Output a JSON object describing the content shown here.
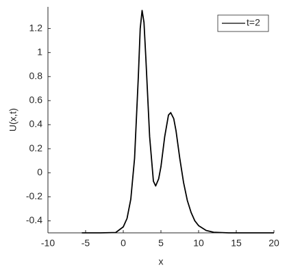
{
  "chart_data": {
    "type": "line",
    "xlabel": "x",
    "ylabel": "U(x,t)",
    "x": [
      -5.5,
      -3,
      -1,
      0,
      0.5,
      1,
      1.5,
      2,
      2.25,
      2.5,
      2.75,
      3,
      3.5,
      4,
      4.3,
      4.7,
      5,
      5.5,
      6,
      6.3,
      6.7,
      7,
      7.5,
      8,
      8.5,
      9,
      9.5,
      10,
      11,
      12,
      14,
      20
    ],
    "series": [
      {
        "name": "t=2",
        "color": "#000000",
        "values": [
          -0.5,
          -0.5,
          -0.497,
          -0.45,
          -0.38,
          -0.22,
          0.12,
          0.8,
          1.2,
          1.35,
          1.25,
          0.95,
          0.3,
          -0.07,
          -0.11,
          -0.05,
          0.05,
          0.3,
          0.48,
          0.5,
          0.45,
          0.35,
          0.12,
          -0.08,
          -0.23,
          -0.33,
          -0.4,
          -0.44,
          -0.48,
          -0.495,
          -0.5,
          -0.5
        ]
      }
    ],
    "xlim": [
      -10,
      20
    ],
    "ylim": [
      -0.5,
      1.38
    ],
    "xticks": [
      -10,
      -5,
      0,
      5,
      10,
      15,
      20
    ],
    "yticks": [
      -0.4,
      -0.2,
      0,
      0.2,
      0.4,
      0.6,
      0.8,
      1,
      1.2
    ],
    "legend": "northeast"
  }
}
